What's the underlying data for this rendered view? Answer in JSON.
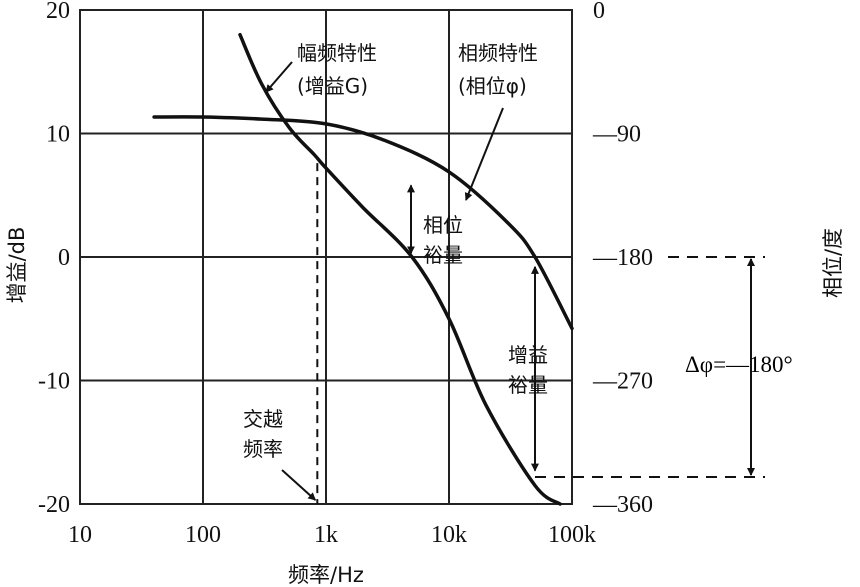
{
  "chart_data": {
    "type": "line",
    "title": "",
    "xlabel": "频率/Hz",
    "ylabel": "增益/dB",
    "y2label": "相位/度",
    "x_scale": "log",
    "xlim": [
      10,
      100000
    ],
    "ylim": [
      -20,
      20
    ],
    "y2lim": [
      -360,
      0
    ],
    "grid": true,
    "x_ticks": [
      "10",
      "100",
      "1k",
      "10k",
      "100k"
    ],
    "y_ticks": [
      "20",
      "10",
      "0",
      "-10",
      "-20"
    ],
    "y2_ticks": [
      "0",
      "—90",
      "—180",
      "—270",
      "—360"
    ],
    "series": [
      {
        "name": "幅频特性(增益G)",
        "axis": "left",
        "x": [
          200,
          300,
          500,
          800,
          1000,
          2000,
          5000,
          10000,
          20000,
          50000,
          80000
        ],
        "y": [
          18,
          14,
          10.5,
          8.3,
          7.2,
          4,
          0,
          -5,
          -12,
          -18.5,
          -20
        ]
      },
      {
        "name": "相频特性(相位φ)",
        "axis": "right",
        "x": [
          40,
          100,
          300,
          1000,
          3000,
          10000,
          30000,
          50000,
          100000
        ],
        "y": [
          -78,
          -78,
          -79.5,
          -83,
          -95,
          -118,
          -155,
          -180,
          -232
        ]
      }
    ],
    "annotations": {
      "phase_margin": [
        "相位",
        "裕量"
      ],
      "gain_margin": [
        "增益",
        "裕量"
      ],
      "crossover": [
        "交越",
        "频率"
      ],
      "delta_phi": "Δφ=—180°",
      "crossover_x": 850
    }
  },
  "labels": {
    "mag_curve": [
      "幅频特性",
      "(增益G)"
    ],
    "phase_curve": [
      "相频特性",
      "(相位φ)"
    ]
  },
  "style": {
    "curve_color": "#111111",
    "grid_color": "#222222",
    "background": "#ffffff"
  }
}
